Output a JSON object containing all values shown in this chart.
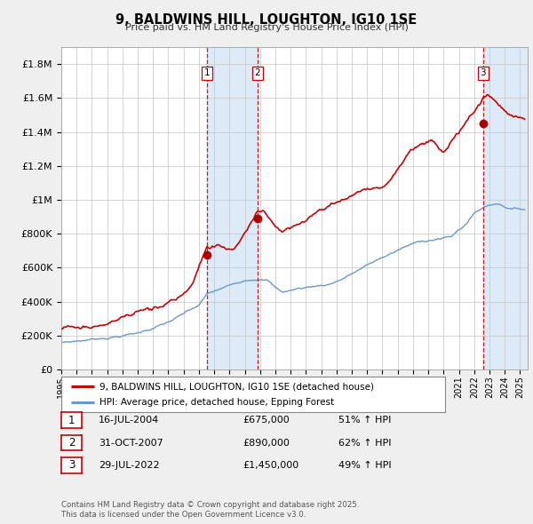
{
  "title": "9, BALDWINS HILL, LOUGHTON, IG10 1SE",
  "subtitle": "Price paid vs. HM Land Registry's House Price Index (HPI)",
  "ylim": [
    0,
    1900000
  ],
  "xlim_start": 1995.0,
  "xlim_end": 2025.5,
  "bg_color": "#efefef",
  "plot_bg_color": "#ffffff",
  "grid_color": "#cccccc",
  "red_line_color": "#cc0000",
  "blue_line_color": "#6699cc",
  "sale_marker_color": "#aa0000",
  "dashed_line_color": "#cc0000",
  "shade_color": "#ddeaf7",
  "legend_label_red": "9, BALDWINS HILL, LOUGHTON, IG10 1SE (detached house)",
  "legend_label_blue": "HPI: Average price, detached house, Epping Forest",
  "transactions": [
    {
      "num": 1,
      "date_label": "16-JUL-2004",
      "date_x": 2004.54,
      "price": 675000,
      "pct": "51% ↑ HPI"
    },
    {
      "num": 2,
      "date_label": "31-OCT-2007",
      "date_x": 2007.83,
      "price": 890000,
      "pct": "62% ↑ HPI"
    },
    {
      "num": 3,
      "date_label": "29-JUL-2022",
      "date_x": 2022.58,
      "price": 1450000,
      "pct": "49% ↑ HPI"
    }
  ],
  "footer_line1": "Contains HM Land Registry data © Crown copyright and database right 2025.",
  "footer_line2": "This data is licensed under the Open Government Licence v3.0.",
  "ytick_labels": [
    "£0",
    "£200K",
    "£400K",
    "£600K",
    "£800K",
    "£1M",
    "£1.2M",
    "£1.4M",
    "£1.6M",
    "£1.8M"
  ],
  "ytick_values": [
    0,
    200000,
    400000,
    600000,
    800000,
    1000000,
    1200000,
    1400000,
    1600000,
    1800000
  ]
}
